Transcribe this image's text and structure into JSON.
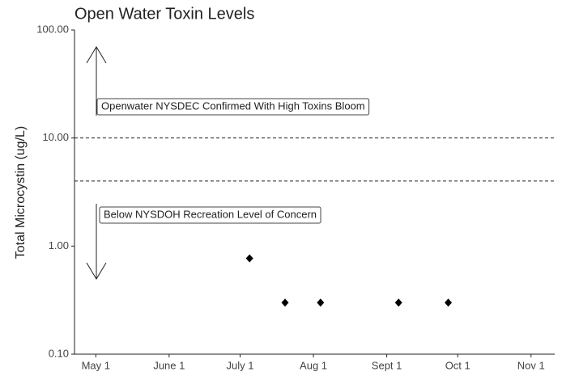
{
  "chart_data": {
    "type": "scatter",
    "title": "Open Water Toxin Levels",
    "ylabel": "Total Microcystin (ug/L)",
    "x": [
      "07-05",
      "07-20",
      "08-04",
      "09-06",
      "09-27"
    ],
    "values": [
      0.77,
      0.3,
      0.3,
      0.3,
      0.3
    ],
    "color": "#000000",
    "xlim": [
      "04-22",
      "11-11"
    ],
    "xticks": [
      {
        "value": "05-01",
        "label": "May 1"
      },
      {
        "value": "06-01",
        "label": "June 1"
      },
      {
        "value": "07-01",
        "label": "July 1"
      },
      {
        "value": "08-01",
        "label": "Aug 1"
      },
      {
        "value": "09-01",
        "label": "Sept 1"
      },
      {
        "value": "10-01",
        "label": "Oct 1"
      },
      {
        "value": "11-01",
        "label": "Nov 1"
      }
    ],
    "ylim": [
      0.1,
      100
    ],
    "yticks": [
      {
        "value": 0.1,
        "label": "0.10"
      },
      {
        "value": 1,
        "label": "1.00"
      },
      {
        "value": 10,
        "label": "10.00"
      },
      {
        "value": 100,
        "label": "100.00"
      }
    ],
    "log_y": true,
    "hlines": [
      10,
      4
    ],
    "annotations": [
      "Openwater NYSDEC Confirmed With High Toxins Bloom",
      "Below NYSDOH Recreation Level of Concern"
    ]
  }
}
